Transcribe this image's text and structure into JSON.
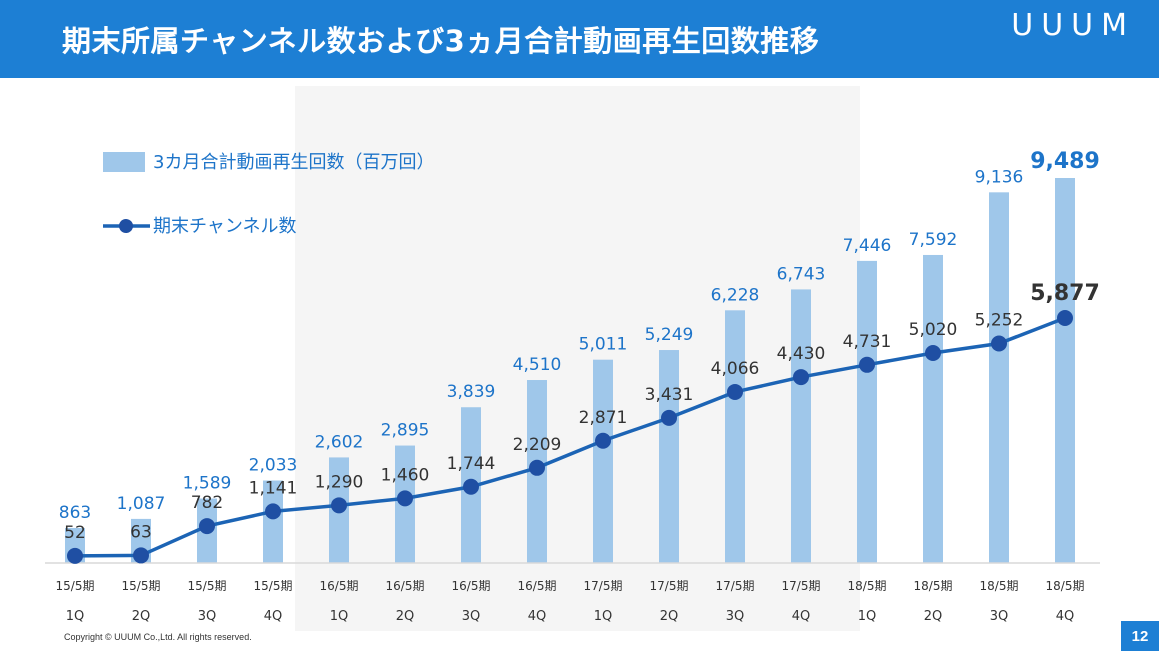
{
  "header": {
    "title": "期末所属チャンネル数および3ヵ月合計動画再生回数推移",
    "logo": "UUUM"
  },
  "footer": {
    "copyright": "Copyright © UUUM Co.,Ltd. All rights reserved.",
    "page_number": "12"
  },
  "colors": {
    "header_bg": "#1d7fd4",
    "bar": "#9fc7ea",
    "line": "#1c64b5",
    "dot": "#1f4fa3",
    "bar_label": "#1d74c9",
    "line_label": "#333333"
  },
  "chart_data": {
    "type": "bar",
    "title": "期末所属チャンネル数および3ヵ月合計動画再生回数推移",
    "categories": [
      [
        "15/5期",
        "1Q"
      ],
      [
        "15/5期",
        "2Q"
      ],
      [
        "15/5期",
        "3Q"
      ],
      [
        "15/5期",
        "4Q"
      ],
      [
        "16/5期",
        "1Q"
      ],
      [
        "16/5期",
        "2Q"
      ],
      [
        "16/5期",
        "3Q"
      ],
      [
        "16/5期",
        "4Q"
      ],
      [
        "17/5期",
        "1Q"
      ],
      [
        "17/5期",
        "2Q"
      ],
      [
        "17/5期",
        "3Q"
      ],
      [
        "17/5期",
        "4Q"
      ],
      [
        "18/5期",
        "1Q"
      ],
      [
        "18/5期",
        "2Q"
      ],
      [
        "18/5期",
        "3Q"
      ],
      [
        "18/5期",
        "4Q"
      ]
    ],
    "series": [
      {
        "name": "3カ月合計動画再生回数（百万回）",
        "type": "bar",
        "values": [
          863,
          1087,
          1589,
          2033,
          2602,
          2895,
          3839,
          4510,
          5011,
          5249,
          6228,
          6743,
          7446,
          7592,
          9136,
          9489
        ],
        "labels": [
          "863",
          "1,087",
          "1,589",
          "2,033",
          "2,602",
          "2,895",
          "3,839",
          "4,510",
          "5,011",
          "5,249",
          "6,228",
          "6,743",
          "7,446",
          "7,592",
          "9,136",
          "9,489"
        ]
      },
      {
        "name": "期末チャンネル数",
        "type": "line",
        "values": [
          52,
          63,
          782,
          1141,
          1290,
          1460,
          1744,
          2209,
          2871,
          3431,
          4066,
          4430,
          4731,
          5020,
          5252,
          5877
        ],
        "labels": [
          "52",
          "63",
          "782",
          "1,141",
          "1,290",
          "1,460",
          "1,744",
          "2,209",
          "2,871",
          "3,431",
          "4,066",
          "4,430",
          "4,731",
          "5,020",
          "5,252",
          "5,877"
        ]
      }
    ],
    "legend": "top-left",
    "grid": false
  }
}
